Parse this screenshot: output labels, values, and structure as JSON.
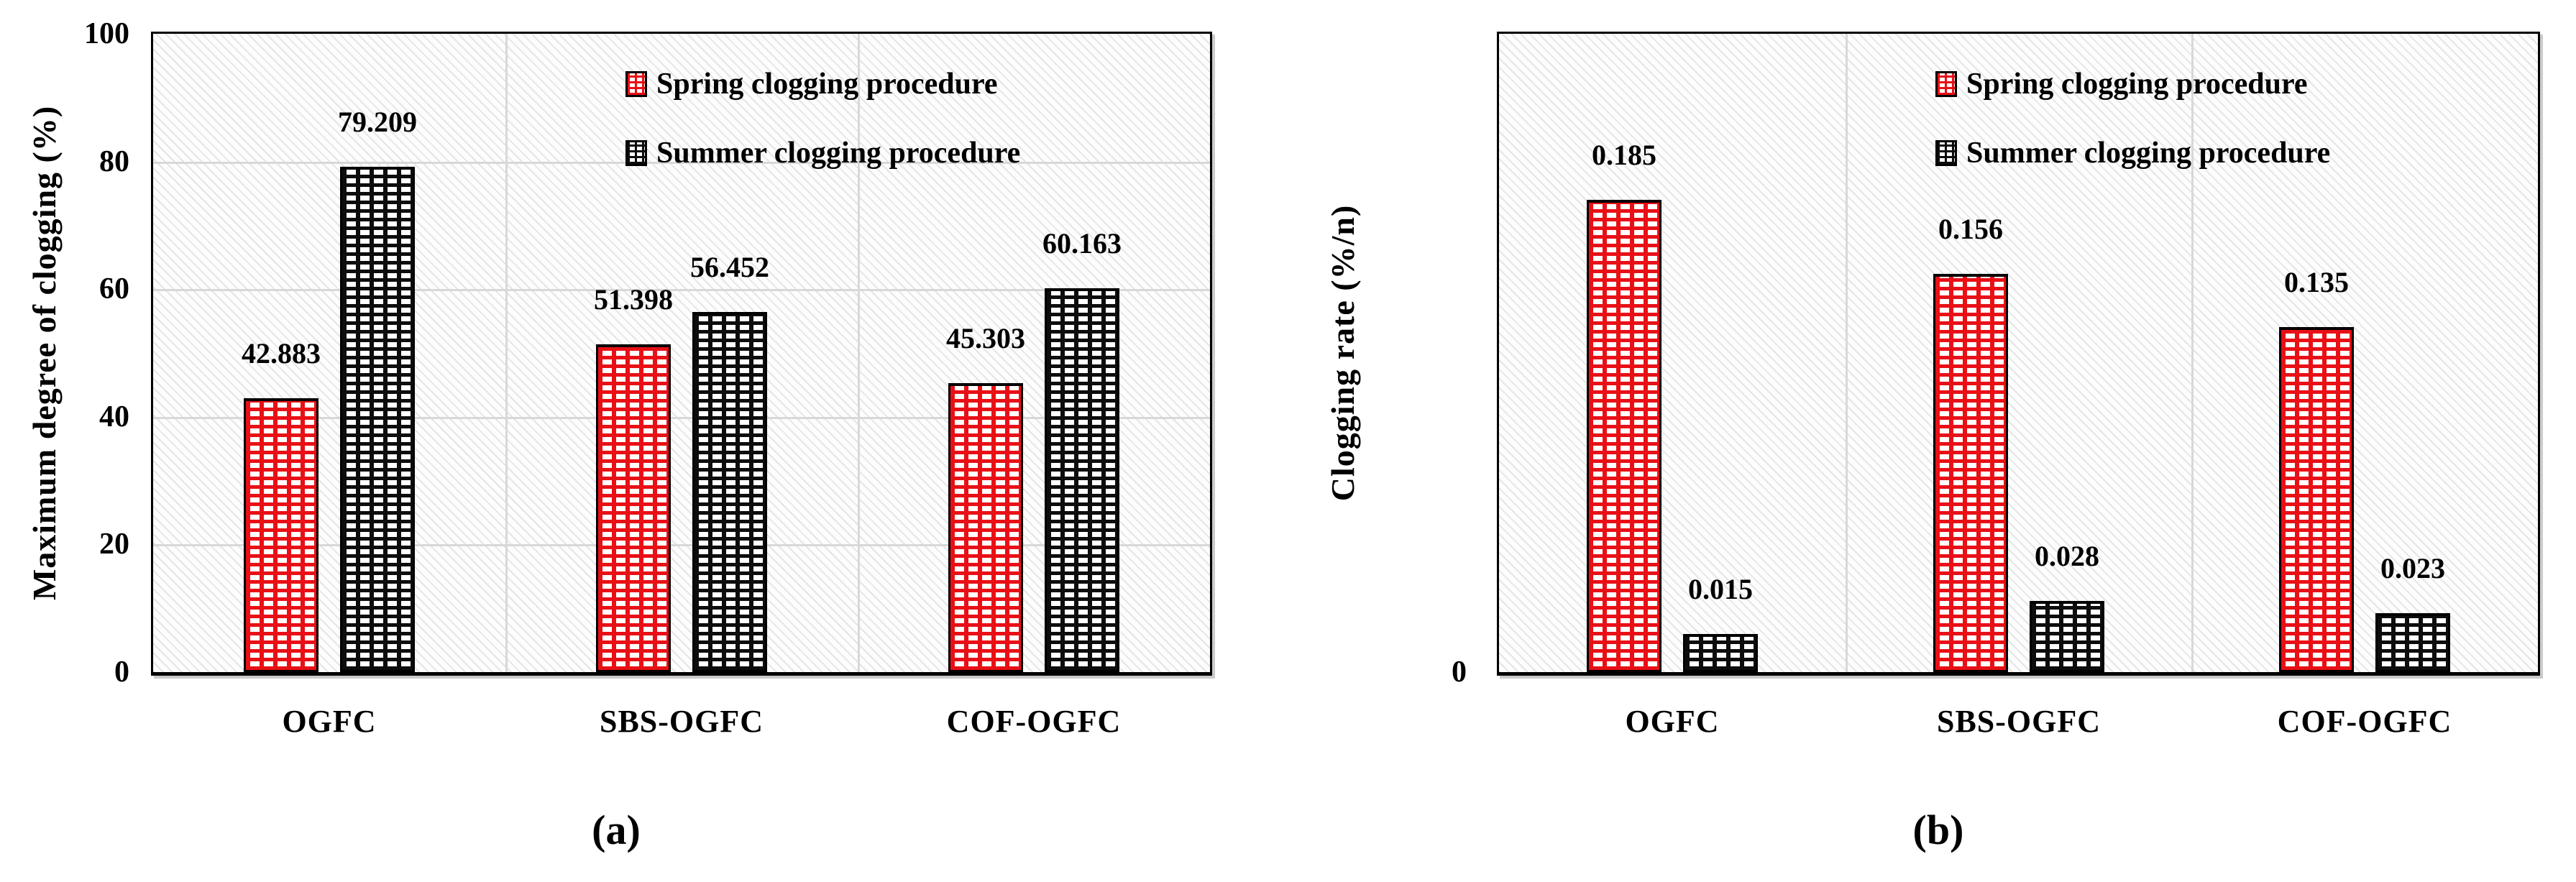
{
  "figure": {
    "background": "#ffffff"
  },
  "colors": {
    "spring": "#e81016",
    "summer": "#0d0d0d",
    "gridline": "#d8d8d8",
    "frame": "#000000"
  },
  "legend": {
    "spring_label": "Spring clogging procedure",
    "summer_label": "Summer clogging procedure"
  },
  "chart_data": [
    {
      "id": "a",
      "type": "bar",
      "title": "",
      "xlabel": "",
      "ylabel": "Maximum degree of clogging (%)",
      "categories": [
        "OGFC",
        "SBS-OGFC",
        "COF-OGFC"
      ],
      "series": [
        {
          "name": "Spring clogging procedure",
          "color": "#e81016",
          "values": [
            42.883,
            51.398,
            45.303
          ],
          "labels": [
            "42.883",
            "51.398",
            "45.303"
          ]
        },
        {
          "name": "Summer clogging procedure",
          "color": "#0d0d0d",
          "values": [
            79.209,
            56.452,
            60.163
          ],
          "labels": [
            "79.209",
            "56.452",
            "60.163"
          ]
        }
      ],
      "ylim": [
        0,
        100
      ],
      "yticks": [
        0,
        20,
        40,
        60,
        80,
        100
      ],
      "ytick_labels": [
        "0",
        "20",
        "40",
        "60",
        "80",
        "100"
      ],
      "grid_horizontal": [
        20,
        40,
        60,
        80
      ],
      "grid_vertical_between_categories": true,
      "legend_position": "top-right-inside",
      "caption": "(a)"
    },
    {
      "id": "b",
      "type": "bar",
      "title": "",
      "xlabel": "",
      "ylabel": "Clogging rate (%/n)",
      "categories": [
        "OGFC",
        "SBS-OGFC",
        "COF-OGFC"
      ],
      "series": [
        {
          "name": "Spring clogging procedure",
          "color": "#e81016",
          "values": [
            0.185,
            0.156,
            0.135
          ],
          "labels": [
            "0.185",
            "0.156",
            "0.135"
          ]
        },
        {
          "name": "Summer clogging procedure",
          "color": "#0d0d0d",
          "values": [
            0.015,
            0.028,
            0.023
          ],
          "labels": [
            "0.015",
            "0.028",
            "0.023"
          ]
        }
      ],
      "ylim": [
        0,
        0.25
      ],
      "yticks": [
        0
      ],
      "ytick_labels": [
        "0"
      ],
      "grid_horizontal": [],
      "grid_vertical_between_categories": true,
      "legend_position": "top-right-inside",
      "caption": "(b)"
    }
  ]
}
